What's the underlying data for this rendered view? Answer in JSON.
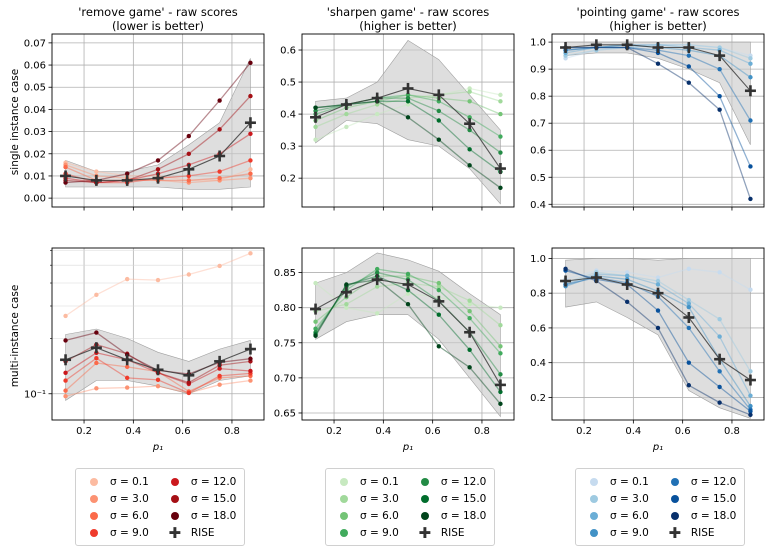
{
  "figure": {
    "sigma_labels": [
      "σ = 0.1",
      "σ = 3.0",
      "σ = 6.0",
      "σ = 9.0",
      "σ = 12.0",
      "σ = 15.0",
      "σ = 18.0"
    ],
    "rise_label": "RISE",
    "row_labels": [
      "single instance case",
      "multi-instance case"
    ],
    "xlabel": "p₁",
    "palettes": {
      "reds": [
        "#fcbba1",
        "#fc9272",
        "#fb6a4a",
        "#ef3b2c",
        "#cb181d",
        "#a50f15",
        "#67000d"
      ],
      "greens": [
        "#c7e9c0",
        "#a1d99b",
        "#74c476",
        "#41ab5d",
        "#238b45",
        "#006d2c",
        "#00441b"
      ],
      "blues": [
        "#c6dbef",
        "#9ecae1",
        "#6baed6",
        "#4292c6",
        "#2171b5",
        "#08519c",
        "#08306b"
      ]
    },
    "band_color": "#c8c8c8",
    "rise_color": "#333333"
  },
  "chart_data": [
    {
      "id": "remove-single",
      "type": "line",
      "title": "'remove game' - raw scores\n(lower is better)",
      "palette": "reds",
      "xlim": [
        0.07,
        0.93
      ],
      "ylim": [
        -0.004,
        0.074
      ],
      "yscale": "linear",
      "xticks": [
        0.2,
        0.4,
        0.6,
        0.8
      ],
      "xtick_labels": [],
      "yticks": [
        0.0,
        0.01,
        0.02,
        0.03,
        0.04,
        0.05,
        0.06,
        0.07
      ],
      "ytick_labels": [
        "0.00",
        "0.01",
        "0.02",
        "0.03",
        "0.04",
        "0.05",
        "0.06",
        "0.07"
      ],
      "x": [
        0.125,
        0.25,
        0.375,
        0.5,
        0.625,
        0.75,
        0.875
      ],
      "series": [
        {
          "name": "σ = 0.1",
          "values": [
            0.016,
            0.012,
            0.01,
            0.01,
            0.008,
            0.008,
            0.013
          ]
        },
        {
          "name": "σ = 3.0",
          "values": [
            0.015,
            0.01,
            0.009,
            0.008,
            0.007,
            0.008,
            0.009
          ]
        },
        {
          "name": "σ = 6.0",
          "values": [
            0.014,
            0.008,
            0.008,
            0.008,
            0.008,
            0.009,
            0.011
          ]
        },
        {
          "name": "σ = 9.0",
          "values": [
            0.011,
            0.007,
            0.007,
            0.009,
            0.01,
            0.012,
            0.017
          ]
        },
        {
          "name": "σ = 12.0",
          "values": [
            0.009,
            0.007,
            0.008,
            0.011,
            0.015,
            0.02,
            0.029
          ]
        },
        {
          "name": "σ = 15.0",
          "values": [
            0.008,
            0.007,
            0.008,
            0.013,
            0.02,
            0.031,
            0.046
          ]
        },
        {
          "name": "σ = 18.0",
          "values": [
            0.007,
            0.008,
            0.011,
            0.017,
            0.028,
            0.044,
            0.061
          ]
        }
      ],
      "rise": [
        0.01,
        0.008,
        0.008,
        0.009,
        0.013,
        0.019,
        0.034
      ],
      "band_upper": [
        0.017,
        0.012,
        0.012,
        0.015,
        0.024,
        0.034,
        0.063
      ],
      "band_lower": [
        0.005,
        0.005,
        0.005,
        0.005,
        0.004,
        0.004,
        0.005
      ]
    },
    {
      "id": "sharpen-single",
      "type": "line",
      "title": "'sharpen game' - raw scores\n(higher is better)",
      "palette": "greens",
      "xlim": [
        0.07,
        0.93
      ],
      "ylim": [
        0.11,
        0.65
      ],
      "yscale": "linear",
      "xticks": [
        0.2,
        0.4,
        0.6,
        0.8
      ],
      "xtick_labels": [],
      "yticks": [
        0.2,
        0.3,
        0.4,
        0.5,
        0.6
      ],
      "ytick_labels": [
        "0.2",
        "0.3",
        "0.4",
        "0.5",
        "0.6"
      ],
      "x": [
        0.125,
        0.25,
        0.375,
        0.5,
        0.625,
        0.75,
        0.875
      ],
      "series": [
        {
          "name": "σ = 0.1",
          "values": [
            0.32,
            0.36,
            0.4,
            0.43,
            0.46,
            0.48,
            0.46
          ]
        },
        {
          "name": "σ = 3.0",
          "values": [
            0.36,
            0.4,
            0.43,
            0.45,
            0.46,
            0.47,
            0.44
          ]
        },
        {
          "name": "σ = 6.0",
          "values": [
            0.38,
            0.42,
            0.44,
            0.46,
            0.45,
            0.44,
            0.4
          ]
        },
        {
          "name": "σ = 9.0",
          "values": [
            0.4,
            0.43,
            0.45,
            0.46,
            0.44,
            0.39,
            0.33
          ]
        },
        {
          "name": "σ = 12.0",
          "values": [
            0.41,
            0.43,
            0.45,
            0.45,
            0.41,
            0.35,
            0.28
          ]
        },
        {
          "name": "σ = 15.0",
          "values": [
            0.42,
            0.43,
            0.44,
            0.44,
            0.38,
            0.29,
            0.22
          ]
        },
        {
          "name": "σ = 18.0",
          "values": [
            0.42,
            0.43,
            0.44,
            0.39,
            0.32,
            0.24,
            0.17
          ]
        }
      ],
      "rise": [
        0.39,
        0.43,
        0.45,
        0.48,
        0.46,
        0.37,
        0.23
      ],
      "band_upper": [
        0.44,
        0.45,
        0.5,
        0.63,
        0.57,
        0.46,
        0.35
      ],
      "band_lower": [
        0.31,
        0.38,
        0.37,
        0.32,
        0.3,
        0.23,
        0.12
      ]
    },
    {
      "id": "pointing-single",
      "type": "line",
      "title": "'pointing game' - raw scores\n(higher is better)",
      "palette": "blues",
      "xlim": [
        0.07,
        0.93
      ],
      "ylim": [
        0.39,
        1.03
      ],
      "yscale": "linear",
      "xticks": [
        0.2,
        0.4,
        0.6,
        0.8
      ],
      "xtick_labels": [],
      "yticks": [
        0.4,
        0.5,
        0.6,
        0.7,
        0.8,
        0.9,
        1.0
      ],
      "ytick_labels": [
        "0.4",
        "0.5",
        "0.6",
        "0.7",
        "0.8",
        "0.9",
        "1.0"
      ],
      "x": [
        0.125,
        0.25,
        0.375,
        0.5,
        0.625,
        0.75,
        0.875
      ],
      "series": [
        {
          "name": "σ = 0.1",
          "values": [
            0.94,
            0.97,
            0.98,
            0.99,
            0.99,
            0.98,
            0.95
          ]
        },
        {
          "name": "σ = 3.0",
          "values": [
            0.95,
            0.97,
            0.98,
            0.99,
            0.99,
            0.98,
            0.94
          ]
        },
        {
          "name": "σ = 6.0",
          "values": [
            0.96,
            0.98,
            0.99,
            0.99,
            0.98,
            0.97,
            0.92
          ]
        },
        {
          "name": "σ = 9.0",
          "values": [
            0.97,
            0.98,
            0.99,
            0.98,
            0.97,
            0.95,
            0.87
          ]
        },
        {
          "name": "σ = 12.0",
          "values": [
            0.97,
            0.98,
            0.98,
            0.97,
            0.95,
            0.9,
            0.71
          ]
        },
        {
          "name": "σ = 15.0",
          "values": [
            0.98,
            0.98,
            0.98,
            0.96,
            0.91,
            0.8,
            0.54
          ]
        },
        {
          "name": "σ = 18.0",
          "values": [
            0.98,
            0.98,
            0.98,
            0.92,
            0.85,
            0.75,
            0.42
          ]
        }
      ],
      "rise": [
        0.98,
        0.99,
        0.99,
        0.98,
        0.98,
        0.95,
        0.82
      ],
      "band_upper": [
        1.0,
        1.0,
        1.0,
        1.0,
        1.0,
        1.0,
        1.0
      ],
      "band_lower": [
        0.95,
        0.96,
        0.96,
        0.94,
        0.9,
        0.85,
        0.62
      ]
    },
    {
      "id": "remove-multi",
      "type": "line",
      "title": "",
      "palette": "reds",
      "xlim": [
        0.07,
        0.93
      ],
      "ylim": [
        0.072,
        0.62
      ],
      "yscale": "log",
      "xticks": [
        0.2,
        0.4,
        0.6,
        0.8
      ],
      "xtick_labels": [
        "0.2",
        "0.4",
        "0.6",
        "0.8"
      ],
      "yticks": [
        0.1
      ],
      "ytick_labels": [
        "10⁻¹"
      ],
      "minor_yticks": [
        0.2,
        0.3,
        0.4,
        0.5,
        0.6
      ],
      "x": [
        0.125,
        0.25,
        0.375,
        0.5,
        0.625,
        0.75,
        0.875
      ],
      "series": [
        {
          "name": "σ = 0.1",
          "values": [
            0.265,
            0.345,
            0.42,
            0.415,
            0.445,
            0.495,
            0.58
          ]
        },
        {
          "name": "σ = 3.0",
          "values": [
            0.097,
            0.107,
            0.108,
            0.11,
            0.101,
            0.112,
            0.118
          ]
        },
        {
          "name": "σ = 6.0",
          "values": [
            0.104,
            0.147,
            0.14,
            0.132,
            0.103,
            0.122,
            0.125
          ]
        },
        {
          "name": "σ = 9.0",
          "values": [
            0.118,
            0.156,
            0.122,
            0.119,
            0.101,
            0.125,
            0.129
          ]
        },
        {
          "name": "σ = 12.0",
          "values": [
            0.13,
            0.167,
            0.153,
            0.13,
            0.113,
            0.137,
            0.133
          ]
        },
        {
          "name": "σ = 15.0",
          "values": [
            0.15,
            0.185,
            0.165,
            0.13,
            0.115,
            0.143,
            0.15
          ]
        },
        {
          "name": "σ = 18.0",
          "values": [
            0.195,
            0.215,
            0.163,
            0.134,
            0.128,
            0.148,
            0.155
          ]
        }
      ],
      "rise": [
        0.153,
        0.178,
        0.153,
        0.135,
        0.126,
        0.15,
        0.175
      ],
      "band_upper": [
        0.21,
        0.225,
        0.2,
        0.168,
        0.15,
        0.175,
        0.195
      ],
      "band_lower": [
        0.092,
        0.118,
        0.118,
        0.11,
        0.1,
        0.118,
        0.125
      ]
    },
    {
      "id": "sharpen-multi",
      "type": "line",
      "title": "",
      "palette": "greens",
      "xlim": [
        0.07,
        0.93
      ],
      "ylim": [
        0.64,
        0.885
      ],
      "yscale": "linear",
      "xticks": [
        0.2,
        0.4,
        0.6,
        0.8
      ],
      "xtick_labels": [
        "0.2",
        "0.4",
        "0.6",
        "0.8"
      ],
      "yticks": [
        0.65,
        0.7,
        0.75,
        0.8,
        0.85
      ],
      "ytick_labels": [
        "0.65",
        "0.70",
        "0.75",
        "0.80",
        "0.85"
      ],
      "x": [
        0.125,
        0.25,
        0.375,
        0.5,
        0.625,
        0.75,
        0.875
      ],
      "series": [
        {
          "name": "σ = 0.1",
          "values": [
            0.835,
            0.8,
            0.792,
            0.82,
            0.815,
            0.805,
            0.8
          ]
        },
        {
          "name": "σ = 3.0",
          "values": [
            0.795,
            0.805,
            0.83,
            0.835,
            0.83,
            0.81,
            0.775
          ]
        },
        {
          "name": "σ = 6.0",
          "values": [
            0.78,
            0.815,
            0.845,
            0.845,
            0.835,
            0.795,
            0.745
          ]
        },
        {
          "name": "σ = 9.0",
          "values": [
            0.77,
            0.825,
            0.855,
            0.848,
            0.825,
            0.785,
            0.735
          ]
        },
        {
          "name": "σ = 12.0",
          "values": [
            0.765,
            0.83,
            0.85,
            0.84,
            0.81,
            0.765,
            0.705
          ]
        },
        {
          "name": "σ = 15.0",
          "values": [
            0.762,
            0.832,
            0.845,
            0.825,
            0.79,
            0.74,
            0.68
          ]
        },
        {
          "name": "σ = 18.0",
          "values": [
            0.76,
            0.833,
            0.84,
            0.805,
            0.745,
            0.715,
            0.663
          ]
        }
      ],
      "rise": [
        0.798,
        0.822,
        0.84,
        0.833,
        0.809,
        0.765,
        0.69
      ],
      "band_upper": [
        0.835,
        0.85,
        0.878,
        0.868,
        0.852,
        0.82,
        0.79
      ],
      "band_lower": [
        0.755,
        0.78,
        0.79,
        0.79,
        0.755,
        0.7,
        0.645
      ]
    },
    {
      "id": "pointing-multi",
      "type": "line",
      "title": "",
      "palette": "blues",
      "xlim": [
        0.07,
        0.93
      ],
      "ylim": [
        0.07,
        1.06
      ],
      "yscale": "linear",
      "xticks": [
        0.2,
        0.4,
        0.6,
        0.8
      ],
      "xtick_labels": [
        "0.2",
        "0.4",
        "0.6",
        "0.8"
      ],
      "yticks": [
        0.2,
        0.4,
        0.6,
        0.8,
        1.0
      ],
      "ytick_labels": [
        "0.2",
        "0.4",
        "0.6",
        "0.8",
        "1.0"
      ],
      "x": [
        0.125,
        0.25,
        0.375,
        0.5,
        0.625,
        0.75,
        0.875
      ],
      "series": [
        {
          "name": "σ = 0.1",
          "values": [
            0.88,
            0.93,
            0.92,
            0.89,
            0.94,
            0.92,
            0.82
          ]
        },
        {
          "name": "σ = 3.0",
          "values": [
            0.86,
            0.92,
            0.9,
            0.87,
            0.76,
            0.65,
            0.35
          ]
        },
        {
          "name": "σ = 6.0",
          "values": [
            0.85,
            0.91,
            0.9,
            0.85,
            0.74,
            0.55,
            0.21
          ]
        },
        {
          "name": "σ = 9.0",
          "values": [
            0.84,
            0.9,
            0.88,
            0.81,
            0.72,
            0.42,
            0.15
          ]
        },
        {
          "name": "σ = 12.0",
          "values": [
            0.85,
            0.89,
            0.86,
            0.78,
            0.6,
            0.35,
            0.13
          ]
        },
        {
          "name": "σ = 15.0",
          "values": [
            0.93,
            0.88,
            0.85,
            0.7,
            0.4,
            0.26,
            0.12
          ]
        },
        {
          "name": "σ = 18.0",
          "values": [
            0.94,
            0.87,
            0.75,
            0.6,
            0.27,
            0.17,
            0.1
          ]
        }
      ],
      "rise": [
        0.87,
        0.89,
        0.85,
        0.8,
        0.66,
        0.42,
        0.3
      ],
      "band_upper": [
        0.99,
        1.0,
        1.0,
        0.99,
        1.0,
        1.0,
        1.0
      ],
      "band_lower": [
        0.72,
        0.75,
        0.66,
        0.56,
        0.24,
        0.14,
        0.08
      ]
    }
  ]
}
